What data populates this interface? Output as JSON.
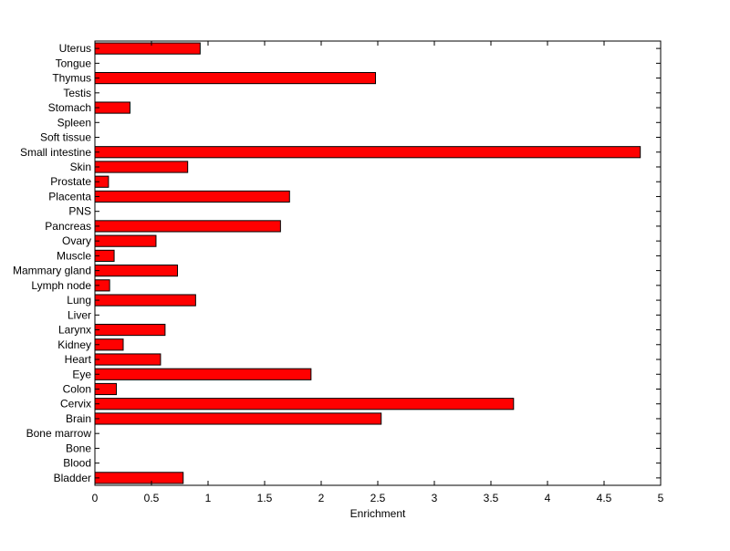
{
  "chart_data": {
    "type": "bar",
    "orientation": "horizontal",
    "xlabel": "Enrichment",
    "ylabel": "",
    "xlim": [
      0,
      5
    ],
    "xticks": [
      0,
      0.5,
      1,
      1.5,
      2,
      2.5,
      3,
      3.5,
      4,
      4.5,
      5
    ],
    "xtick_labels": [
      "0",
      "0.5",
      "1",
      "1.5",
      "2",
      "2.5",
      "3",
      "3.5",
      "4",
      "4.5",
      "5"
    ],
    "grid": false,
    "categories": [
      "Bladder",
      "Blood",
      "Bone",
      "Bone marrow",
      "Brain",
      "Cervix",
      "Colon",
      "Eye",
      "Heart",
      "Kidney",
      "Larynx",
      "Liver",
      "Lung",
      "Lymph node",
      "Mammary gland",
      "Muscle",
      "Ovary",
      "Pancreas",
      "PNS",
      "Placenta",
      "Prostate",
      "Skin",
      "Small intestine",
      "Soft tissue",
      "Spleen",
      "Stomach",
      "Testis",
      "Thymus",
      "Tongue",
      "Uterus"
    ],
    "values": [
      0.78,
      0,
      0,
      0,
      2.53,
      3.7,
      0.19,
      1.91,
      0.58,
      0.25,
      0.62,
      0,
      0.89,
      0.13,
      0.73,
      0.17,
      0.54,
      1.64,
      0,
      1.72,
      0.12,
      0.82,
      4.82,
      0,
      0,
      0.31,
      0,
      2.48,
      0,
      0.93
    ],
    "bar_color": "#ff0000",
    "bar_edge_color": "#000000"
  }
}
